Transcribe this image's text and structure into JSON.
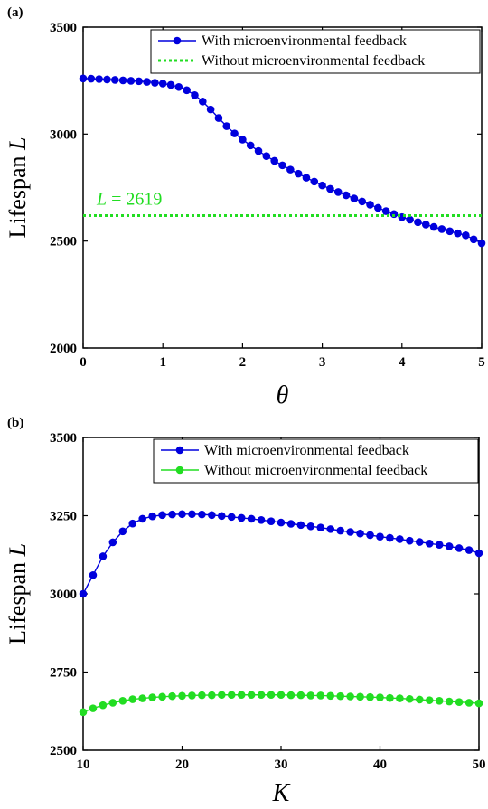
{
  "chart_data": [
    {
      "panel_label": "(a)",
      "type": "line",
      "xlabel": "θ",
      "ylabel": "Lifespan",
      "ylabel_var": "L",
      "xlim": [
        0,
        5
      ],
      "ylim": [
        2000,
        3500
      ],
      "xticks": [
        "0",
        "1",
        "2",
        "3",
        "4",
        "5"
      ],
      "yticks": [
        "2000",
        "2500",
        "3000",
        "3500"
      ],
      "legend_position": "top-right",
      "annotation": {
        "var": "L",
        "text": " = 2619",
        "color": "#22dd22"
      },
      "series": [
        {
          "name": "With microenvironmental feedback",
          "color": "#0000dd",
          "style": "line-markers",
          "x": [
            0,
            0.1,
            0.2,
            0.3,
            0.4,
            0.5,
            0.6,
            0.7,
            0.8,
            0.9,
            1.0,
            1.1,
            1.2,
            1.3,
            1.4,
            1.5,
            1.6,
            1.7,
            1.8,
            1.9,
            2.0,
            2.1,
            2.2,
            2.3,
            2.4,
            2.5,
            2.6,
            2.7,
            2.8,
            2.9,
            3.0,
            3.1,
            3.2,
            3.3,
            3.4,
            3.5,
            3.6,
            3.7,
            3.8,
            3.9,
            4.0,
            4.1,
            4.2,
            4.3,
            4.4,
            4.5,
            4.6,
            4.7,
            4.8,
            4.9,
            5.0
          ],
          "values": [
            3260,
            3259,
            3257,
            3255,
            3253,
            3251,
            3249,
            3247,
            3244,
            3240,
            3236,
            3230,
            3220,
            3205,
            3182,
            3152,
            3115,
            3075,
            3037,
            3003,
            2974,
            2947,
            2921,
            2897,
            2875,
            2854,
            2834,
            2815,
            2796,
            2778,
            2760,
            2744,
            2729,
            2714,
            2699,
            2685,
            2670,
            2655,
            2640,
            2626,
            2612,
            2600,
            2588,
            2577,
            2566,
            2556,
            2546,
            2536,
            2527,
            2508,
            2490
          ]
        },
        {
          "name": "Without microenvironmental feedback",
          "color": "#22dd22",
          "style": "dotted",
          "x": [
            0,
            5
          ],
          "values": [
            2619,
            2619
          ]
        }
      ]
    },
    {
      "panel_label": "(b)",
      "type": "line",
      "xlabel": "K",
      "ylabel": "Lifespan",
      "ylabel_var": "L",
      "xlim": [
        10,
        50
      ],
      "ylim": [
        2500,
        3500
      ],
      "xticks": [
        "10",
        "20",
        "30",
        "40",
        "50"
      ],
      "yticks": [
        "2500",
        "2750",
        "3000",
        "3250",
        "3500"
      ],
      "legend_position": "top-right",
      "series": [
        {
          "name": "With microenvironmental feedback",
          "color": "#0000dd",
          "style": "line-markers",
          "x": [
            10,
            11,
            12,
            13,
            14,
            15,
            16,
            17,
            18,
            19,
            20,
            21,
            22,
            23,
            24,
            25,
            26,
            27,
            28,
            29,
            30,
            31,
            32,
            33,
            34,
            35,
            36,
            37,
            38,
            39,
            40,
            41,
            42,
            43,
            44,
            45,
            46,
            47,
            48,
            49,
            50
          ],
          "values": [
            3000,
            3060,
            3120,
            3165,
            3200,
            3225,
            3240,
            3248,
            3252,
            3254,
            3255,
            3255,
            3254,
            3252,
            3249,
            3246,
            3243,
            3240,
            3236,
            3232,
            3228,
            3224,
            3220,
            3216,
            3212,
            3207,
            3202,
            3198,
            3193,
            3188,
            3183,
            3179,
            3175,
            3170,
            3166,
            3161,
            3157,
            3152,
            3146,
            3140,
            3130
          ]
        },
        {
          "name": "Without microenvironmental feedback",
          "color": "#22dd22",
          "style": "line-markers",
          "x": [
            10,
            11,
            12,
            13,
            14,
            15,
            16,
            17,
            18,
            19,
            20,
            21,
            22,
            23,
            24,
            25,
            26,
            27,
            28,
            29,
            30,
            31,
            32,
            33,
            34,
            35,
            36,
            37,
            38,
            39,
            40,
            41,
            42,
            43,
            44,
            45,
            46,
            47,
            48,
            49,
            50
          ],
          "values": [
            2622,
            2634,
            2644,
            2652,
            2658,
            2663,
            2666,
            2669,
            2671,
            2673,
            2674,
            2675,
            2676,
            2676,
            2677,
            2677,
            2677,
            2677,
            2677,
            2677,
            2677,
            2676,
            2676,
            2675,
            2675,
            2674,
            2673,
            2672,
            2671,
            2670,
            2669,
            2667,
            2666,
            2664,
            2662,
            2660,
            2658,
            2656,
            2654,
            2652,
            2650
          ]
        }
      ]
    }
  ]
}
